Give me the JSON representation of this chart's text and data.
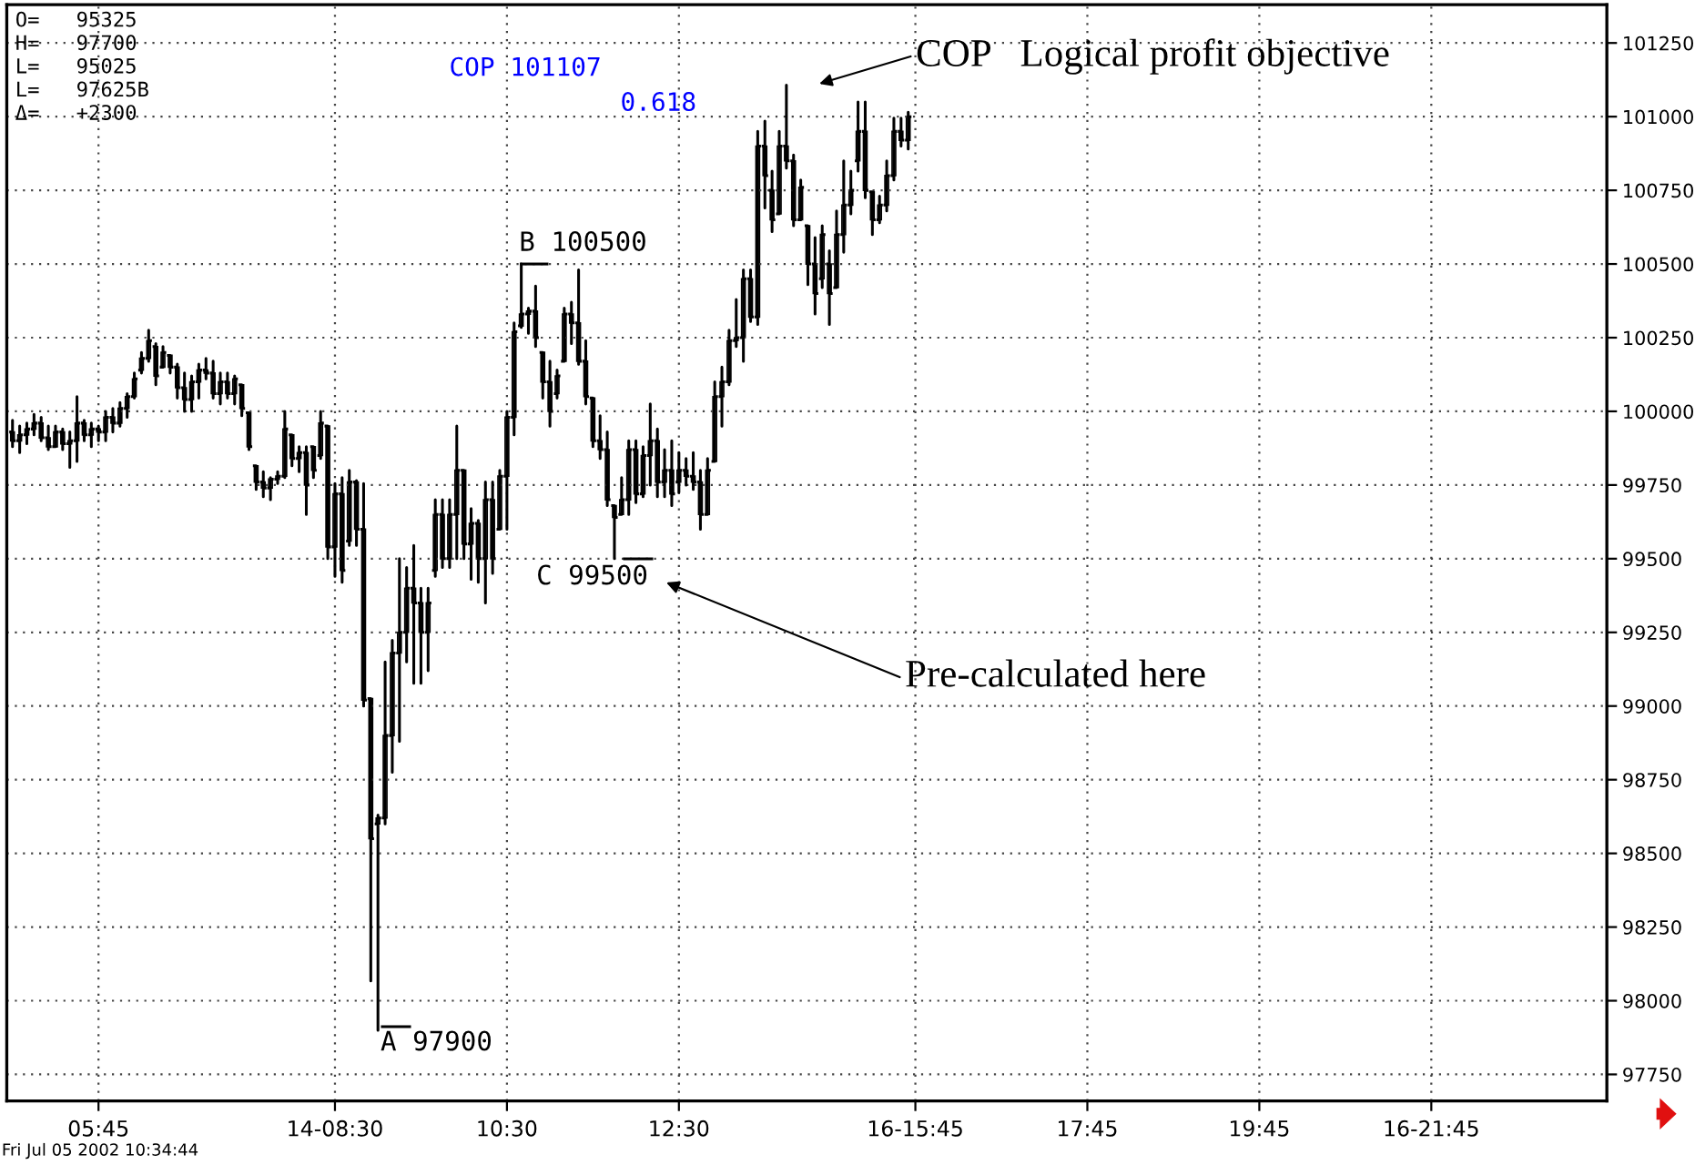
{
  "chart_data": {
    "type": "candlestick",
    "color": "#000000",
    "categories": [
      null,
      null,
      null,
      null,
      null,
      null,
      null,
      null,
      null,
      null,
      null,
      null,
      "05:45",
      null,
      null,
      null,
      null,
      null,
      null,
      null,
      null,
      null,
      null,
      null,
      null,
      null,
      null,
      null,
      null,
      null,
      null,
      null,
      null,
      null,
      null,
      null,
      null,
      null,
      null,
      null,
      null,
      null,
      null,
      null,
      null,
      "14-08:30",
      null,
      null,
      null,
      null,
      null,
      null,
      null,
      null,
      null,
      null,
      null,
      null,
      null,
      null,
      null,
      null,
      null,
      null,
      null,
      null,
      null,
      null,
      null,
      "10:30",
      null,
      null,
      null,
      null,
      null,
      null,
      null,
      null,
      null,
      null,
      null,
      null,
      null,
      null,
      null,
      null,
      null,
      null,
      null,
      null,
      null,
      null,
      null,
      "12:30",
      null,
      null,
      null,
      null,
      null,
      null,
      null,
      null,
      null,
      null,
      null,
      null,
      null,
      null,
      null,
      null,
      null,
      null,
      null,
      null,
      null,
      null,
      null,
      null,
      null,
      null,
      null,
      null,
      null,
      null,
      null,
      null,
      "16-15:45",
      null,
      null,
      null,
      null,
      null,
      null,
      null,
      null,
      null,
      null,
      null,
      null,
      null,
      null,
      null,
      null,
      null,
      null,
      null,
      null,
      null,
      null,
      null,
      "17:45",
      null,
      null,
      null,
      null,
      null,
      null,
      null,
      null,
      null,
      null,
      null,
      null,
      null,
      null,
      null,
      null,
      null,
      null,
      null,
      null,
      null,
      null,
      null,
      "19:45",
      null,
      null,
      null,
      null,
      null,
      null,
      null,
      null,
      null,
      null,
      null,
      null,
      null,
      null,
      null,
      null,
      null,
      null,
      null,
      null,
      null,
      null,
      null,
      "16-21:45",
      null,
      null,
      null,
      null,
      null,
      null,
      null,
      null,
      null,
      null,
      null,
      null,
      null,
      null,
      null,
      null,
      null,
      null,
      null,
      null,
      null,
      null,
      null,
      null
    ],
    "ohlc": [
      [
        99930,
        99970,
        99880,
        99900
      ],
      [
        99900,
        99950,
        99860,
        99920
      ],
      [
        99920,
        99960,
        99890,
        99940
      ],
      [
        99940,
        99990,
        99920,
        99960
      ],
      [
        99960,
        99980,
        99900,
        99910
      ],
      [
        99910,
        99950,
        99870,
        99880
      ],
      [
        99880,
        99950,
        99880,
        99930
      ],
      [
        99930,
        99940,
        99870,
        99890
      ],
      [
        99890,
        99930,
        99810,
        99900
      ],
      [
        99900,
        100050,
        99830,
        99960
      ],
      [
        99960,
        99970,
        99900,
        99920
      ],
      [
        99920,
        99960,
        99880,
        99940
      ],
      [
        99940,
        99950,
        99900,
        99930
      ],
      [
        99930,
        100000,
        99900,
        99980
      ],
      [
        99980,
        100010,
        99930,
        99960
      ],
      [
        99960,
        100030,
        99950,
        100010
      ],
      [
        100010,
        100060,
        99980,
        100050
      ],
      [
        100050,
        100130,
        100045,
        100110
      ],
      [
        100140,
        100200,
        100130,
        100180
      ],
      [
        100180,
        100275,
        100170,
        100240
      ],
      [
        100220,
        100230,
        100090,
        100120
      ],
      [
        100150,
        100220,
        100150,
        100200
      ],
      [
        100190,
        100190,
        100130,
        100150
      ],
      [
        100150,
        100160,
        100045,
        100080
      ],
      [
        100080,
        100130,
        100000,
        100040
      ],
      [
        100040,
        100120,
        100000,
        100100
      ],
      [
        100100,
        100160,
        100045,
        100140
      ],
      [
        100140,
        100180,
        100110,
        100130
      ],
      [
        100130,
        100170,
        100045,
        100060
      ],
      [
        100060,
        100130,
        100025,
        100100
      ],
      [
        100100,
        100130,
        100045,
        100060
      ],
      [
        100060,
        100120,
        100025,
        100110
      ],
      [
        100090,
        100090,
        99985,
        100010
      ],
      [
        99995,
        99995,
        99870,
        99880
      ],
      [
        99815,
        99815,
        99735,
        99760
      ],
      [
        99760,
        99795,
        99710,
        99740
      ],
      [
        99740,
        99775,
        99700,
        99770
      ],
      [
        99770,
        99795,
        99755,
        99780
      ],
      [
        99780,
        100000,
        99775,
        99940
      ],
      [
        99920,
        99920,
        99815,
        99840
      ],
      [
        99840,
        99880,
        99795,
        99860
      ],
      [
        99860,
        99880,
        99650,
        99750
      ],
      [
        99880,
        99880,
        99775,
        99800
      ],
      [
        99850,
        100000,
        99840,
        99960
      ],
      [
        99950,
        99950,
        99500,
        99540
      ],
      [
        99540,
        99755,
        99440,
        99720
      ],
      [
        99720,
        99775,
        99420,
        99460
      ],
      [
        99560,
        99800,
        99545,
        99760
      ],
      [
        99760,
        99765,
        99545,
        99600
      ],
      [
        99600,
        99755,
        99000,
        99020
      ],
      [
        99025,
        99025,
        98067,
        98550
      ],
      [
        98600,
        98630,
        97900,
        98620
      ],
      [
        98620,
        99150,
        98600,
        98900
      ],
      [
        98900,
        99223,
        98775,
        99180
      ],
      [
        99180,
        99500,
        98880,
        99250
      ],
      [
        99250,
        99470,
        99150,
        99400
      ],
      [
        99400,
        99545,
        99077,
        99350
      ],
      [
        99350,
        99400,
        99077,
        99250
      ],
      [
        99250,
        99400,
        99120,
        99350
      ],
      [
        99460,
        99700,
        99440,
        99650
      ],
      [
        99650,
        99700,
        99470,
        99500
      ],
      [
        99500,
        99700,
        99470,
        99650
      ],
      [
        99650,
        99950,
        99500,
        99800
      ],
      [
        99800,
        99800,
        99500,
        99550
      ],
      [
        99550,
        99670,
        99430,
        99620
      ],
      [
        99620,
        99630,
        99420,
        99500
      ],
      [
        99500,
        99760,
        99350,
        99700
      ],
      [
        99700,
        99760,
        99450,
        99500
      ],
      [
        99600,
        99800,
        99600,
        99780
      ],
      [
        99780,
        100000,
        99600,
        99980
      ],
      [
        99980,
        100300,
        99920,
        100270
      ],
      [
        100290,
        100500,
        100285,
        100330
      ],
      [
        100330,
        100350,
        100265,
        100340
      ],
      [
        100340,
        100425,
        100220,
        100250
      ],
      [
        100200,
        100200,
        100045,
        100100
      ],
      [
        100100,
        100170,
        99950,
        100000
      ],
      [
        100060,
        100140,
        100045,
        100120
      ],
      [
        100170,
        100350,
        100170,
        100330
      ],
      [
        100330,
        100370,
        100230,
        100300
      ],
      [
        100300,
        100480,
        100160,
        100170
      ],
      [
        100170,
        100240,
        100025,
        100050
      ],
      [
        100045,
        100045,
        99880,
        99900
      ],
      [
        99900,
        99985,
        99840,
        99870
      ],
      [
        99870,
        99930,
        99680,
        99700
      ],
      [
        99680,
        99680,
        99500,
        99640
      ],
      [
        99650,
        99775,
        99650,
        99700
      ],
      [
        99700,
        99900,
        99650,
        99870
      ],
      [
        99870,
        99900,
        99690,
        99720
      ],
      [
        99720,
        99880,
        99710,
        99850
      ],
      [
        99850,
        100025,
        99750,
        99900
      ],
      [
        99900,
        99940,
        99710,
        99760
      ],
      [
        99760,
        99870,
        99710,
        99800
      ],
      [
        99800,
        99900,
        99680,
        99720
      ],
      [
        99760,
        99860,
        99725,
        99800
      ],
      [
        99800,
        99840,
        99750,
        99780
      ],
      [
        99780,
        99860,
        99735,
        99760
      ],
      [
        99760,
        99800,
        99600,
        99650
      ],
      [
        99650,
        99840,
        99650,
        99800
      ],
      [
        99830,
        100100,
        99830,
        100050
      ],
      [
        100050,
        100150,
        99950,
        100100
      ],
      [
        100100,
        100275,
        100090,
        100240
      ],
      [
        100240,
        100380,
        100220,
        100250
      ],
      [
        100250,
        100480,
        100170,
        100450
      ],
      [
        100450,
        100480,
        100305,
        100320
      ],
      [
        100320,
        100950,
        100295,
        100900
      ],
      [
        100900,
        100985,
        100690,
        100800
      ],
      [
        100750,
        100815,
        100610,
        100650
      ],
      [
        100670,
        100950,
        100670,
        100900
      ],
      [
        100900,
        101107,
        100825,
        100850
      ],
      [
        100850,
        100870,
        100630,
        100650
      ],
      [
        100650,
        100785,
        100650,
        100760
      ],
      [
        100630,
        100630,
        100430,
        100500
      ],
      [
        100500,
        100590,
        100330,
        100400
      ],
      [
        100450,
        100630,
        100420,
        100600
      ],
      [
        100500,
        100545,
        100295,
        100400
      ],
      [
        100420,
        100680,
        100420,
        100600
      ],
      [
        100600,
        100850,
        100540,
        100700
      ],
      [
        100700,
        100815,
        100670,
        100750
      ],
      [
        100850,
        101050,
        100815,
        100950
      ],
      [
        100950,
        101050,
        100725,
        100750
      ],
      [
        100745,
        100745,
        100600,
        100650
      ],
      [
        100650,
        100730,
        100640,
        100700
      ],
      [
        100700,
        100850,
        100680,
        100800
      ],
      [
        100800,
        100995,
        100785,
        100950
      ],
      [
        100950,
        100995,
        100900,
        100920
      ],
      [
        100920,
        101015,
        100890,
        101000
      ],
      null,
      null,
      null,
      null,
      null,
      null,
      null,
      null,
      null,
      null,
      null,
      null,
      null,
      null,
      null,
      null,
      null,
      null,
      null,
      null,
      null,
      null,
      null,
      null,
      null,
      null,
      null,
      null,
      null,
      null,
      null,
      null,
      null,
      null,
      null,
      null,
      null,
      null,
      null,
      null,
      null,
      null,
      null,
      null,
      null,
      null,
      null,
      null,
      null,
      null,
      null,
      null,
      null,
      null,
      null,
      null,
      null,
      null,
      null,
      null,
      null,
      null,
      null,
      null,
      null,
      null,
      null,
      null,
      null,
      null,
      null,
      null,
      null,
      null,
      null,
      null,
      null,
      null,
      null,
      null,
      null,
      null,
      null,
      null,
      null,
      null,
      null,
      null,
      null,
      null,
      null,
      null,
      null,
      null,
      null,
      null,
      null
    ],
    "ylim": [
      97660,
      101380
    ],
    "yticks": [
      97750,
      98000,
      98250,
      98500,
      98750,
      99000,
      99250,
      99500,
      99750,
      100000,
      100250,
      100500,
      100750,
      101000,
      101250
    ],
    "grid": true,
    "annotations": [
      "O=   95325",
      "H=   97700",
      "L=   95025",
      "L=   97625B",
      "Δ=   +2300",
      "COP 101107",
      "0.618",
      {
        "text": "B 100500",
        "y": 100500
      },
      "C 99500",
      "A 97900",
      "COP   Logical profit objective",
      "Pre-calculated here",
      "Fri Jul 05 2002 10:34:44"
    ]
  }
}
